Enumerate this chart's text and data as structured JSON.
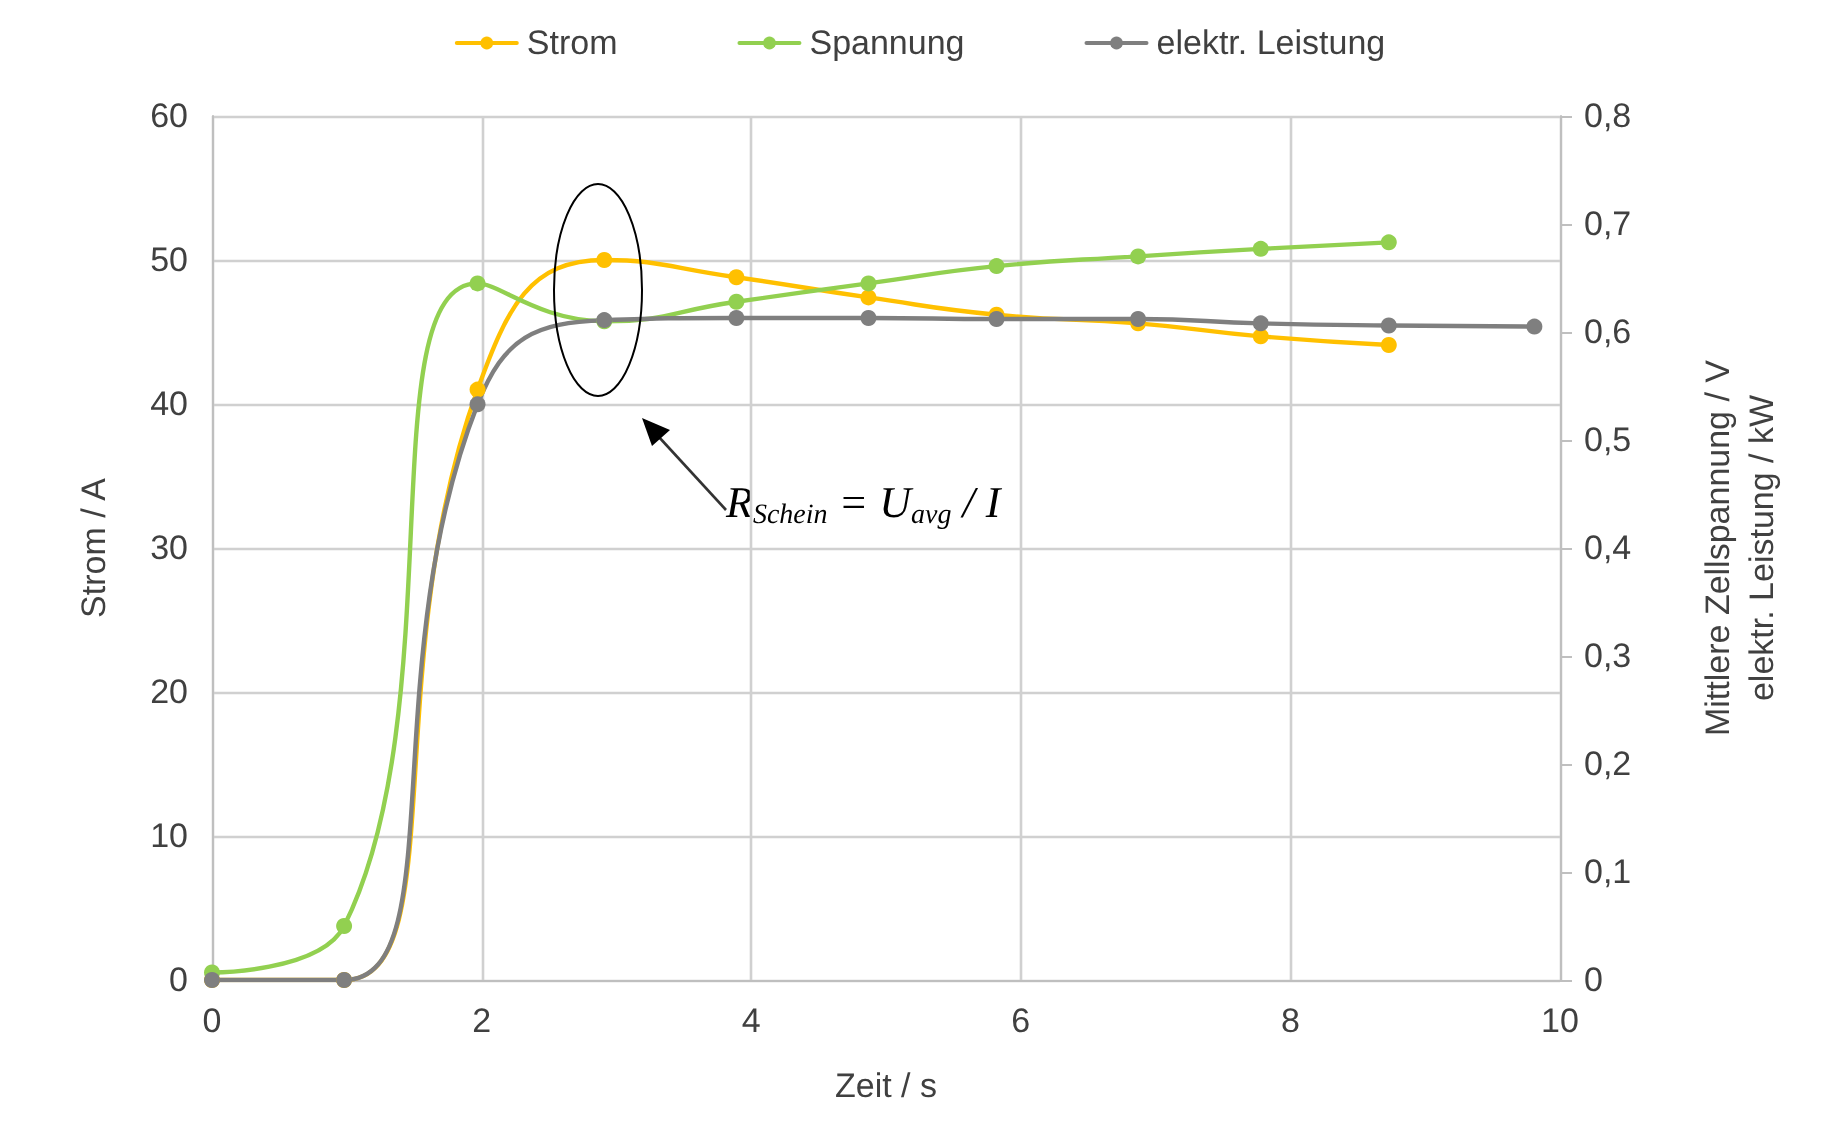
{
  "chart_data": {
    "type": "line",
    "xlabel": "Zeit / s",
    "ylabel": "Strom / A",
    "y2label": "Mittlere Zellspannung / V\nelektr. Leistung / kW",
    "xlim": [
      0,
      10
    ],
    "xticks": [
      0,
      2,
      4,
      6,
      8,
      10
    ],
    "ylim": [
      0,
      60
    ],
    "yticks": [
      0,
      10,
      20,
      30,
      40,
      50,
      60
    ],
    "y2lim": [
      0,
      0.8
    ],
    "y2ticks": [
      0,
      {
        "value": 0.1,
        "label": "0,1"
      },
      {
        "value": 0.2,
        "label": "0,2"
      },
      {
        "value": 0.3,
        "label": "0,3"
      },
      {
        "value": 0.4,
        "label": "0,4"
      },
      {
        "value": 0.5,
        "label": "0,5"
      },
      {
        "value": 0.6,
        "label": "0,6"
      },
      {
        "value": 0.7,
        "label": "0,7"
      },
      {
        "value": 0.8,
        "label": "0,8"
      }
    ],
    "grid": true,
    "legend": "top",
    "marker": "circle",
    "line_style": "solid",
    "annotations": [
      "R$_{Schein}$ = U$_{avg}$ / I"
    ],
    "series": [
      {
        "name": "Strom",
        "color": "#ffc000",
        "x": [
          0,
          0.98,
          1.97,
          2.91,
          3.89,
          4.87,
          5.82,
          6.87,
          7.78,
          8.73
        ],
        "values": [
          0,
          0,
          41,
          50,
          48.8,
          47.4,
          46.2,
          45.6,
          44.7,
          44.1
        ]
      },
      {
        "name": "Spannung",
        "color": "#92d050",
        "axis": "y2",
        "x": [
          0,
          0.98,
          1.97,
          2.91,
          3.89,
          4.87,
          5.82,
          6.87,
          7.78,
          8.73
        ],
        "values": [
          0.007,
          0.05,
          0.645,
          0.61,
          0.628,
          0.645,
          0.661,
          0.67,
          0.677,
          0.683
        ]
      },
      {
        "name": "elektr. Leistung",
        "color": "#7f7f7f",
        "axis": "y2",
        "x": [
          0,
          0.98,
          1.97,
          2.91,
          3.89,
          4.87,
          5.82,
          6.87,
          7.78,
          8.73,
          9.81
        ],
        "values": [
          0,
          0,
          0.533,
          0.611,
          0.613,
          0.613,
          0.612,
          0.612,
          0.608,
          0.606,
          0.605
        ]
      }
    ]
  }
}
